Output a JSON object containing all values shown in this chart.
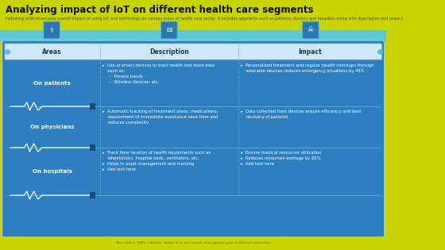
{
  "title": "Analyzing impact of IoT on different health care segments",
  "subtitle": "Following slide showcases overall impact of using IoT and technology on various areas of health care sector. It includes segments such as patients, doctors and hospitals along with description and impact.",
  "bg_yellow": "#c8d400",
  "bg_blue_band": "#5bc8d8",
  "bg_table": "#2e7fc0",
  "header_bg": "#d0e8f5",
  "header_text_color": "#1a3a5c",
  "text_white": "#ffffff",
  "footer_bg": "#c8d400",
  "footer_text": "This slide is 100% editable. Adapt it to your needs and capture your audience's attention.",
  "columns": [
    "Areas",
    "Description",
    "Impact"
  ],
  "divider_color": "#5dade2",
  "heartbeat_color": "#ffffff",
  "dot_color": "#5bbcd6",
  "rows": [
    {
      "area": "On patients",
      "description": "▸  Use of smart devices to tract health and store data\n    such as:\n     ◦  Fitness bands\n     ◦  Wireless devices, etc.",
      "impact": "▸  Personalized treatment and regular health checkups through\n    wearable devices reduces emergency situations by 45%"
    },
    {
      "area": "On physicians",
      "description": "▸  Automatic tracking of treatment plans, medications;\n    requirement of immediate assistance save time and\n    reduces complexity",
      "impact": "▸  Data collected from devices ensure efficiency and best\n    recovery of patients"
    },
    {
      "area": "On hospitals",
      "description": "▸  Track time location of health equipments such as\n    wheelchairs, hospital beds, ventilators, etc.\n▸  Helps in asset management and tracking\n▸  Add text here",
      "impact": "▸  Ensure medical resources utilization\n▸  Reduces resources wastage by 65%\n▸  Add text here"
    }
  ]
}
